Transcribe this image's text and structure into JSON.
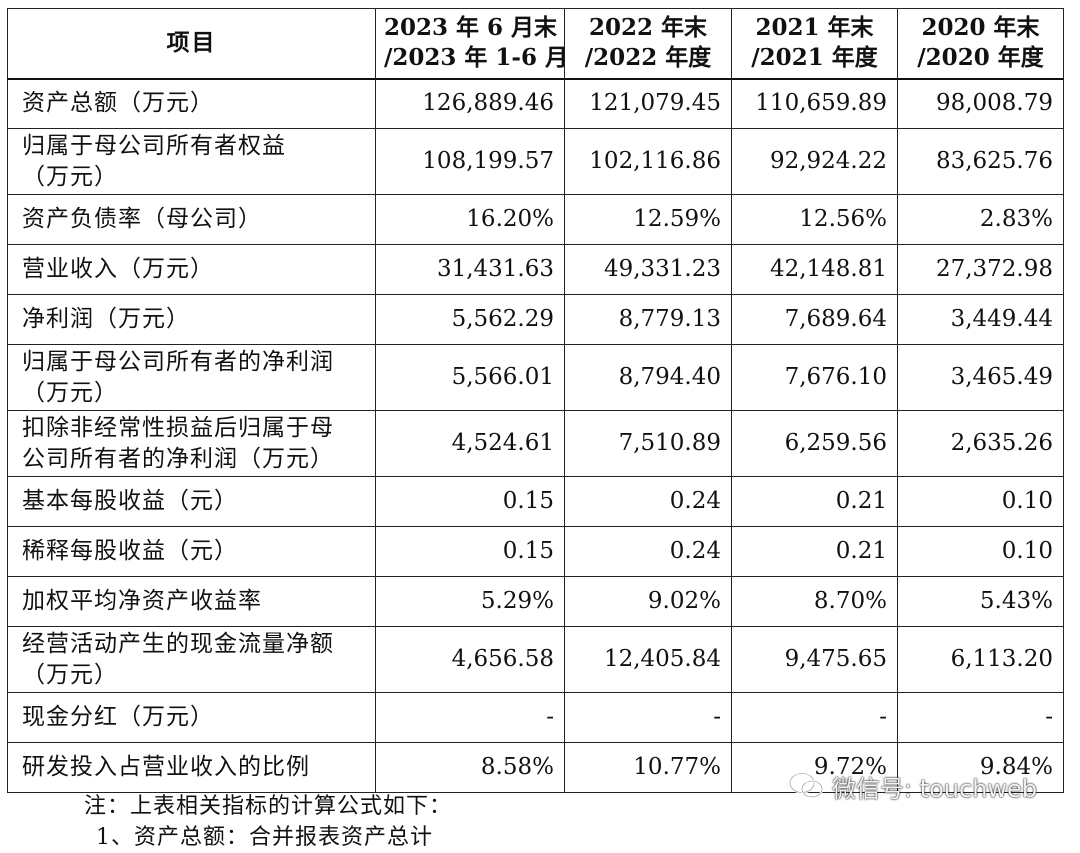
{
  "table": {
    "headers": [
      {
        "line1": "项目",
        "line2": ""
      },
      {
        "line1": "2023 年 6 月末",
        "line2": "/2023 年 1-6 月"
      },
      {
        "line1": "2022 年末",
        "line2": "/2022 年度"
      },
      {
        "line1": "2021 年末",
        "line2": "/2021 年度"
      },
      {
        "line1": "2020 年末",
        "line2": "/2020 年度"
      }
    ],
    "rows": [
      {
        "label_l1": "资产总额（万元）",
        "label_l2": "",
        "values": [
          "126,889.46",
          "121,079.45",
          "110,659.89",
          "98,008.79"
        ]
      },
      {
        "label_l1": "归属于母公司所有者权益",
        "label_l2": "（万元）",
        "values": [
          "108,199.57",
          "102,116.86",
          "92,924.22",
          "83,625.76"
        ]
      },
      {
        "label_l1": "资产负债率（母公司）",
        "label_l2": "",
        "values": [
          "16.20%",
          "12.59%",
          "12.56%",
          "2.83%"
        ]
      },
      {
        "label_l1": "营业收入（万元）",
        "label_l2": "",
        "values": [
          "31,431.63",
          "49,331.23",
          "42,148.81",
          "27,372.98"
        ]
      },
      {
        "label_l1": "净利润（万元）",
        "label_l2": "",
        "values": [
          "5,562.29",
          "8,779.13",
          "7,689.64",
          "3,449.44"
        ]
      },
      {
        "label_l1": "归属于母公司所有者的净利润",
        "label_l2": "（万元）",
        "values": [
          "5,566.01",
          "8,794.40",
          "7,676.10",
          "3,465.49"
        ]
      },
      {
        "label_l1": "扣除非经常性损益后归属于母",
        "label_l2": "公司所有者的净利润（万元）",
        "values": [
          "4,524.61",
          "7,510.89",
          "6,259.56",
          "2,635.26"
        ]
      },
      {
        "label_l1": "基本每股收益（元）",
        "label_l2": "",
        "values": [
          "0.15",
          "0.24",
          "0.21",
          "0.10"
        ]
      },
      {
        "label_l1": "稀释每股收益（元）",
        "label_l2": "",
        "values": [
          "0.15",
          "0.24",
          "0.21",
          "0.10"
        ]
      },
      {
        "label_l1": "加权平均净资产收益率",
        "label_l2": "",
        "values": [
          "5.29%",
          "9.02%",
          "8.70%",
          "5.43%"
        ]
      },
      {
        "label_l1": "经营活动产生的现金流量净额",
        "label_l2": "（万元）",
        "values": [
          "4,656.58",
          "12,405.84",
          "9,475.65",
          "6,113.20"
        ]
      },
      {
        "label_l1": "现金分红（万元）",
        "label_l2": "",
        "values": [
          "-",
          "-",
          "-",
          "-"
        ]
      },
      {
        "label_l1": "研发投入占营业收入的比例",
        "label_l2": "",
        "values": [
          "8.58%",
          "10.77%",
          "9.72%",
          "9.84%"
        ]
      }
    ]
  },
  "note": "注：上表相关指标的计算公式如下：",
  "note_cut": "1、资产总额：合并报表资产总计",
  "watermark": {
    "text": "微信号: touchweb",
    "icon": "wechat-icon"
  }
}
